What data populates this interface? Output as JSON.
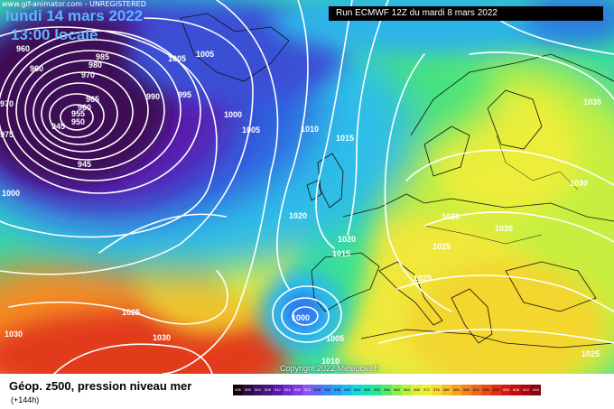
{
  "watermark": "www.gif-animator.com - UNREGISTERED",
  "date_label": "lundi 14 mars 2022",
  "time_label": "13:00 locale",
  "run_label": "Run ECMWF 12Z du mardi 8 mars 2022",
  "copyright": "Copyright 2022 Meteociel.fr",
  "footer": {
    "title": "Géop. z500, pression niveau mer",
    "subtitle": "(+144h)"
  },
  "pressure_labels": [
    "960",
    "960",
    "985",
    "980",
    "970",
    "965",
    "960",
    "955",
    "950",
    "945",
    "945",
    "975",
    "970",
    "1000",
    "1005",
    "1005",
    "990",
    "995",
    "1000",
    "1005",
    "1010",
    "1015",
    "1020",
    "1020",
    "1015",
    "1025",
    "1030",
    "1035",
    "1035",
    "1030",
    "1025",
    "1000",
    "1005",
    "1010",
    "1025",
    "1030",
    "1030",
    "1025"
  ],
  "scale": {
    "labels": [
      "496",
      "500",
      "504",
      "508",
      "512",
      "516",
      "520",
      "524",
      "528",
      "532",
      "536",
      "540",
      "544",
      "548",
      "552",
      "556",
      "560",
      "564",
      "568",
      "572",
      "576",
      "580",
      "584",
      "588",
      "592",
      "596",
      "600",
      "604",
      "608",
      "612",
      "616"
    ],
    "colors": [
      "#1a0010",
      "#2b0b3d",
      "#3d1063",
      "#4a1487",
      "#5a1aa8",
      "#6f2bcc",
      "#7f3be0",
      "#8c55ef",
      "#5f6bf3",
      "#3f87f5",
      "#2aa3f5",
      "#1fbdf0",
      "#19d4dc",
      "#1be0b8",
      "#2ee68f",
      "#5aea6a",
      "#8aee4c",
      "#b8f040",
      "#dff23b",
      "#f5ee32",
      "#f8d92c",
      "#f7bf27",
      "#f5a322",
      "#f2871e",
      "#ee6a1b",
      "#e84c18",
      "#e02e16",
      "#d41814",
      "#c20c12",
      "#a8060f",
      "#8a030c"
    ]
  },
  "colors": {
    "low_core": "#3a0a4a",
    "deep_blue": "#2f4fd8",
    "cyan": "#39c7ee",
    "green": "#3ee38c",
    "yellow": "#e8f03e",
    "orange": "#f48d20",
    "red": "#e3381a",
    "isobar": "#ffffff",
    "coast": "#111111"
  }
}
